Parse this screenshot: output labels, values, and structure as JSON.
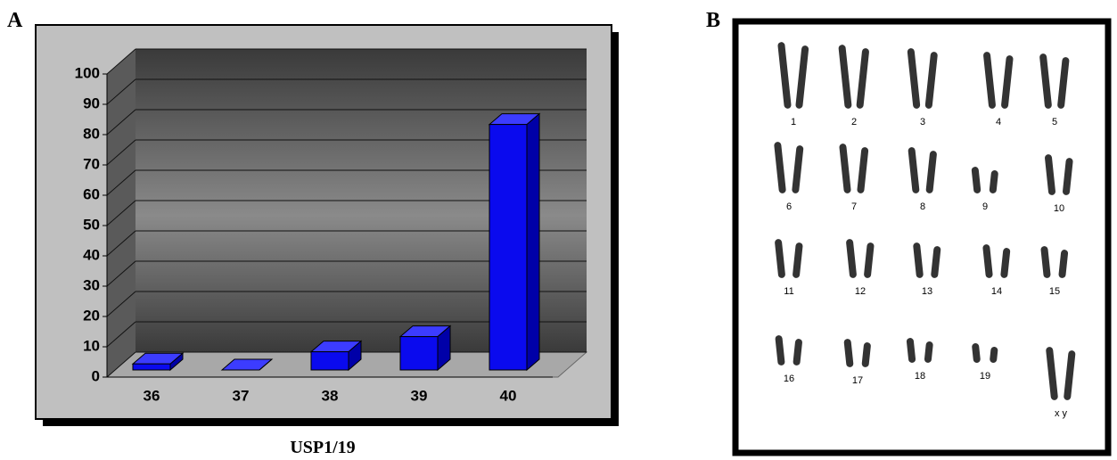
{
  "panel_a": {
    "label": "A"
  },
  "chart_data": {
    "type": "bar",
    "x_label": "USP1/19",
    "categories": [
      "36",
      "37",
      "38",
      "39",
      "40"
    ],
    "values": [
      2,
      0,
      6,
      11,
      81
    ],
    "color": "#0a0aee",
    "ylim": [
      0,
      100
    ],
    "yticks": [
      0,
      10,
      20,
      30,
      40,
      50,
      60,
      70,
      80,
      90,
      100
    ],
    "grid": true
  },
  "panel_b": {
    "label": "B",
    "chromosome_labels": [
      "1",
      "2",
      "3",
      "4",
      "5",
      "6",
      "7",
      "8",
      "9",
      "10",
      "11",
      "12",
      "13",
      "14",
      "15",
      "16",
      "17",
      "18",
      "19",
      "x y"
    ]
  }
}
